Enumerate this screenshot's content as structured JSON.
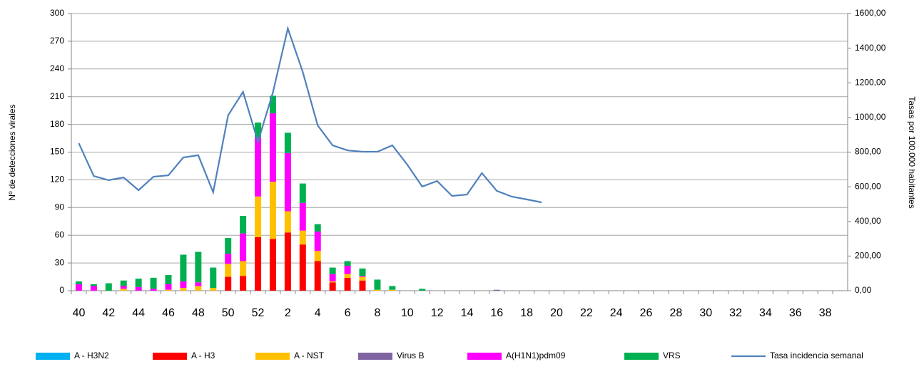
{
  "chart_data": {
    "type": "bar",
    "y_label": "Nº de detecciones virales",
    "y2_label": "Tasas por 100.000 habitantes",
    "categories": [
      "40",
      null,
      "42",
      null,
      "44",
      null,
      "46",
      null,
      "48",
      null,
      "50",
      null,
      "52",
      null,
      "2",
      null,
      "4",
      null,
      "6",
      null,
      "8",
      null,
      "10",
      null,
      "12",
      null,
      "14",
      null,
      "16",
      null,
      "18",
      null,
      "20",
      null,
      "22",
      null,
      "24",
      null,
      "26",
      null,
      "28",
      null,
      "30",
      null,
      "32",
      null,
      "34",
      null,
      "36",
      null,
      "38",
      null
    ],
    "ylim": [
      0,
      300
    ],
    "yticks": [
      0,
      30,
      60,
      90,
      120,
      150,
      180,
      210,
      240,
      270,
      300
    ],
    "y2lim": [
      0,
      1600
    ],
    "y2ticks": [
      {
        "value": 0,
        "label": "0,00"
      },
      {
        "value": 200,
        "label": "200,00"
      },
      {
        "value": 400,
        "label": "400,00"
      },
      {
        "value": 600,
        "label": "600,00"
      },
      {
        "value": 800,
        "label": "800,00"
      },
      {
        "value": 1000,
        "label": "1000,00"
      },
      {
        "value": 1200,
        "label": "1200,00"
      },
      {
        "value": 1400,
        "label": "1400,00"
      },
      {
        "value": 1600,
        "label": "1600,00"
      }
    ],
    "grid": true,
    "legend": "bottom",
    "series": [
      {
        "name": "A - H3N2",
        "type": "bar",
        "color": "#00b0f0",
        "values": [
          0,
          0,
          0,
          0,
          0,
          0,
          0,
          0,
          0,
          0,
          0,
          0,
          0,
          0,
          0,
          0,
          0,
          0,
          0,
          0,
          0,
          0,
          0,
          0,
          0,
          0,
          0,
          0,
          0,
          0,
          0,
          0,
          0,
          0,
          0,
          0,
          0,
          0,
          0,
          0,
          0,
          0,
          0,
          0,
          0,
          0,
          0,
          0,
          0,
          0,
          0,
          0
        ]
      },
      {
        "name": "A - H3",
        "type": "bar",
        "color": "#ff0000",
        "values": [
          0,
          0,
          0,
          0,
          0,
          0,
          0,
          0,
          0,
          0,
          15,
          16,
          58,
          56,
          63,
          50,
          32,
          9,
          14,
          11,
          0,
          0,
          0,
          0,
          0,
          0,
          0,
          0,
          0,
          0,
          0,
          0,
          0,
          0,
          0,
          0,
          0,
          0,
          0,
          0,
          0,
          0,
          0,
          0,
          0,
          0,
          0,
          0,
          0,
          0,
          0,
          0
        ]
      },
      {
        "name": "A - NST",
        "type": "bar",
        "color": "#ffc000",
        "values": [
          0,
          0,
          0,
          2,
          0,
          0,
          1,
          3,
          5,
          3,
          14,
          16,
          44,
          62,
          23,
          15,
          11,
          1,
          4,
          4,
          1,
          1,
          0,
          0,
          0,
          0,
          0,
          0,
          0,
          0,
          0,
          0,
          0,
          0,
          0,
          0,
          0,
          0,
          0,
          0,
          0,
          0,
          0,
          0,
          0,
          0,
          0,
          0,
          0,
          0,
          0,
          0
        ]
      },
      {
        "name": "Virus B",
        "type": "bar",
        "color": "#8064a2",
        "values": [
          0,
          0,
          0,
          0,
          0,
          0,
          0,
          0,
          0,
          0,
          0,
          0,
          0,
          0,
          0,
          0,
          0,
          0,
          0,
          0,
          0,
          0,
          0,
          0,
          0,
          0,
          0,
          0,
          1,
          0,
          0,
          0,
          0,
          0,
          0,
          0,
          0,
          0,
          0,
          0,
          0,
          0,
          0,
          0,
          0,
          0,
          0,
          0,
          0,
          0,
          0,
          0
        ]
      },
      {
        "name": "A(H1N1)pdm09",
        "type": "bar",
        "color": "#ff00ff",
        "values": [
          7,
          5,
          0,
          3,
          4,
          2,
          6,
          7,
          4,
          0,
          11,
          30,
          64,
          74,
          63,
          30,
          21,
          8,
          9,
          1,
          0,
          0,
          0,
          0,
          0,
          0,
          0,
          0,
          0,
          0,
          0,
          0,
          0,
          0,
          0,
          0,
          0,
          0,
          0,
          0,
          0,
          0,
          0,
          0,
          0,
          0,
          0,
          0,
          0,
          0,
          0,
          0
        ]
      },
      {
        "name": "VRS",
        "type": "bar",
        "color": "#00b050",
        "values": [
          3,
          2,
          8,
          6,
          9,
          12,
          10,
          29,
          33,
          22,
          17,
          19,
          16,
          19,
          22,
          21,
          8,
          7,
          5,
          8,
          11,
          4,
          0,
          2,
          0,
          0,
          0,
          0,
          0,
          0,
          0,
          0,
          0,
          0,
          0,
          0,
          0,
          0,
          0,
          0,
          0,
          0,
          0,
          0,
          0,
          0,
          0,
          0,
          0,
          0,
          0,
          0
        ]
      },
      {
        "name": "Tasa incidencia semanal",
        "type": "line",
        "axis": "y2",
        "color": "#4f81bd",
        "values": [
          851,
          662,
          638,
          654,
          580,
          658,
          666,
          769,
          782,
          568,
          1012,
          1148,
          860,
          1144,
          1514,
          1263,
          954,
          839,
          810,
          802,
          802,
          839,
          728,
          601,
          633,
          547,
          555,
          679,
          576,
          543,
          527,
          510,
          null,
          null,
          null,
          null,
          null,
          null,
          null,
          null,
          null,
          null,
          null,
          null,
          null,
          null,
          null,
          null,
          null,
          null,
          null,
          null
        ]
      }
    ]
  }
}
